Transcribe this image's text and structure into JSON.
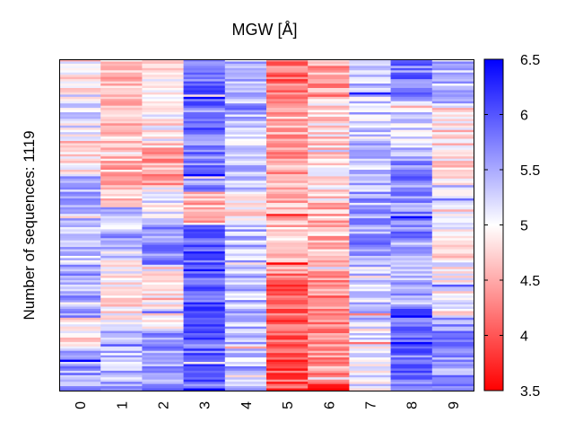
{
  "chart_data": {
    "type": "heatmap",
    "title": "MGW [Å]",
    "ylabel": "Number of sequences: 1119",
    "xlabel": "",
    "columns": [
      "0",
      "1",
      "2",
      "3",
      "4",
      "5",
      "6",
      "7",
      "8",
      "9"
    ],
    "rows": 1119,
    "colorbar": {
      "min": 3.5,
      "max": 6.5,
      "ticks": [
        "3.5",
        "4",
        "4.5",
        "5",
        "5.5",
        "6",
        "6.5"
      ],
      "colormap": [
        "#ff0000",
        "#ffffff",
        "#0000ff"
      ]
    },
    "column_profiles": [
      {
        "column": "0",
        "segments": [
          {
            "from": 0.0,
            "to": 0.1,
            "value": 4.9
          },
          {
            "from": 0.1,
            "to": 0.25,
            "value": 5.1
          },
          {
            "from": 0.25,
            "to": 0.35,
            "value": 4.8
          },
          {
            "from": 0.35,
            "to": 0.5,
            "value": 5.5
          },
          {
            "from": 0.5,
            "to": 0.62,
            "value": 5.3
          },
          {
            "from": 0.62,
            "to": 0.78,
            "value": 5.5
          },
          {
            "from": 0.78,
            "to": 0.88,
            "value": 4.9
          },
          {
            "from": 0.88,
            "to": 1.0,
            "value": 5.6
          }
        ]
      },
      {
        "column": "1",
        "segments": [
          {
            "from": 0.0,
            "to": 0.3,
            "value": 4.7
          },
          {
            "from": 0.3,
            "to": 0.45,
            "value": 4.6
          },
          {
            "from": 0.45,
            "to": 0.6,
            "value": 5.4
          },
          {
            "from": 0.6,
            "to": 0.8,
            "value": 4.9
          },
          {
            "from": 0.8,
            "to": 1.0,
            "value": 5.4
          }
        ]
      },
      {
        "column": "2",
        "segments": [
          {
            "from": 0.0,
            "to": 0.25,
            "value": 4.9
          },
          {
            "from": 0.25,
            "to": 0.38,
            "value": 4.5
          },
          {
            "from": 0.38,
            "to": 0.5,
            "value": 5.1
          },
          {
            "from": 0.5,
            "to": 0.62,
            "value": 5.7
          },
          {
            "from": 0.62,
            "to": 0.82,
            "value": 4.9
          },
          {
            "from": 0.82,
            "to": 1.0,
            "value": 5.6
          }
        ]
      },
      {
        "column": "3",
        "segments": [
          {
            "from": 0.0,
            "to": 0.25,
            "value": 5.9
          },
          {
            "from": 0.25,
            "to": 0.4,
            "value": 5.8
          },
          {
            "from": 0.4,
            "to": 0.5,
            "value": 4.6
          },
          {
            "from": 0.5,
            "to": 0.75,
            "value": 6.0
          },
          {
            "from": 0.75,
            "to": 1.0,
            "value": 5.9
          }
        ]
      },
      {
        "column": "4",
        "segments": [
          {
            "from": 0.0,
            "to": 0.25,
            "value": 5.4
          },
          {
            "from": 0.25,
            "to": 0.4,
            "value": 5.3
          },
          {
            "from": 0.4,
            "to": 0.5,
            "value": 4.8
          },
          {
            "from": 0.5,
            "to": 1.0,
            "value": 5.4
          }
        ]
      },
      {
        "column": "5",
        "segments": [
          {
            "from": 0.0,
            "to": 0.12,
            "value": 4.1
          },
          {
            "from": 0.12,
            "to": 0.4,
            "value": 4.5
          },
          {
            "from": 0.4,
            "to": 0.65,
            "value": 4.6
          },
          {
            "from": 0.65,
            "to": 0.88,
            "value": 4.1
          },
          {
            "from": 0.88,
            "to": 1.0,
            "value": 4.0
          }
        ]
      },
      {
        "column": "6",
        "segments": [
          {
            "from": 0.0,
            "to": 0.12,
            "value": 4.4
          },
          {
            "from": 0.12,
            "to": 0.4,
            "value": 4.8
          },
          {
            "from": 0.4,
            "to": 0.65,
            "value": 4.6
          },
          {
            "from": 0.65,
            "to": 0.9,
            "value": 4.3
          },
          {
            "from": 0.9,
            "to": 0.98,
            "value": 4.4
          },
          {
            "from": 0.98,
            "to": 1.0,
            "value": 3.6
          }
        ]
      },
      {
        "column": "7",
        "segments": [
          {
            "from": 0.0,
            "to": 0.25,
            "value": 5.3
          },
          {
            "from": 0.25,
            "to": 0.4,
            "value": 5.4
          },
          {
            "from": 0.4,
            "to": 0.6,
            "value": 5.6
          },
          {
            "from": 0.6,
            "to": 0.8,
            "value": 5.3
          },
          {
            "from": 0.8,
            "to": 1.0,
            "value": 5.1
          }
        ]
      },
      {
        "column": "8",
        "segments": [
          {
            "from": 0.0,
            "to": 0.12,
            "value": 5.8
          },
          {
            "from": 0.12,
            "to": 0.3,
            "value": 5.3
          },
          {
            "from": 0.3,
            "to": 0.55,
            "value": 5.7
          },
          {
            "from": 0.55,
            "to": 0.75,
            "value": 5.5
          },
          {
            "from": 0.75,
            "to": 1.0,
            "value": 5.8
          }
        ]
      },
      {
        "column": "9",
        "segments": [
          {
            "from": 0.0,
            "to": 0.15,
            "value": 5.4
          },
          {
            "from": 0.15,
            "to": 0.4,
            "value": 4.8
          },
          {
            "from": 0.4,
            "to": 0.6,
            "value": 4.9
          },
          {
            "from": 0.6,
            "to": 0.78,
            "value": 5.0
          },
          {
            "from": 0.78,
            "to": 1.0,
            "value": 5.6
          }
        ]
      }
    ]
  }
}
